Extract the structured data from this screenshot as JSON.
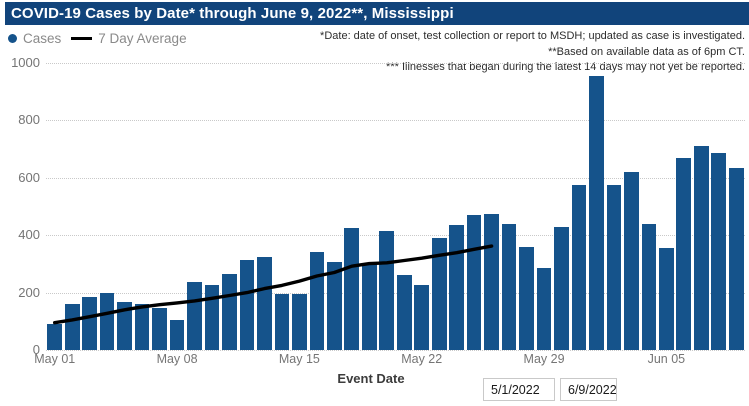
{
  "header": {
    "title": "COVID-19 Cases by Date* through June 9, 2022**, Mississippi"
  },
  "legend": {
    "cases_label": "Cases",
    "avg_label": "7 Day Average"
  },
  "annotations": {
    "line1": "*Date: date of onset, test collection or report to MSDH; updated as case is investigated.",
    "line2": "**Based on available data as of 6pm CT.",
    "line3": "*** Illnesses that began during the latest 14 days may not yet be reported."
  },
  "axes": {
    "x_title": "Event Date",
    "y_ticks": [
      0,
      200,
      400,
      600,
      800,
      1000
    ],
    "x_ticks": [
      {
        "label": "May 01",
        "day_index": 0
      },
      {
        "label": "May 08",
        "day_index": 7
      },
      {
        "label": "May 15",
        "day_index": 14
      },
      {
        "label": "May 22",
        "day_index": 21
      },
      {
        "label": "May 29",
        "day_index": 28
      },
      {
        "label": "Jun 05",
        "day_index": 35
      }
    ]
  },
  "controls": {
    "start_date": "5/1/2022",
    "end_date": "6/9/2022"
  },
  "colors": {
    "header_bg": "#11447B",
    "bar": "#15538B",
    "avg_line": "#000000",
    "grid": "#c9c9c9",
    "axis_text": "#757575",
    "legend_text": "#8a8a8a",
    "annotation_text": "#2d2d2d"
  },
  "chart_data": {
    "type": "bar",
    "title": "COVID-19 Cases by Date* through June 9, 2022**, Mississippi",
    "xlabel": "Event Date",
    "ylabel": "",
    "ylim": [
      0,
      1000
    ],
    "grid": "dotted-horizontal",
    "legend_position": "top-left",
    "categories": [
      "May 01",
      "May 02",
      "May 03",
      "May 04",
      "May 05",
      "May 06",
      "May 07",
      "May 08",
      "May 09",
      "May 10",
      "May 11",
      "May 12",
      "May 13",
      "May 14",
      "May 15",
      "May 16",
      "May 17",
      "May 18",
      "May 19",
      "May 20",
      "May 21",
      "May 22",
      "May 23",
      "May 24",
      "May 25",
      "May 26",
      "May 27",
      "May 28",
      "May 29",
      "May 30",
      "May 31",
      "Jun 01",
      "Jun 02",
      "Jun 03",
      "Jun 04",
      "Jun 05",
      "Jun 06",
      "Jun 07",
      "Jun 08",
      "Jun 09"
    ],
    "series": [
      {
        "name": "Cases",
        "type": "bar",
        "values": [
          90,
          160,
          185,
          200,
          168,
          162,
          145,
          105,
          237,
          228,
          265,
          313,
          325,
          195,
          195,
          340,
          307,
          425,
          298,
          415,
          263,
          228,
          390,
          437,
          470,
          473,
          440,
          360,
          285,
          430,
          575,
          955,
          575,
          620,
          440,
          355,
          670,
          710,
          685,
          635
        ]
      },
      {
        "name": "7 Day Average",
        "type": "line",
        "note": "plotted only through May 26 (latest 14 days incomplete)",
        "values": [
          95,
          105,
          116,
          128,
          140,
          150,
          158,
          164,
          171,
          180,
          190,
          200,
          214,
          225,
          240,
          258,
          270,
          292,
          301,
          304,
          312,
          320,
          330,
          339,
          351,
          362
        ]
      }
    ]
  }
}
